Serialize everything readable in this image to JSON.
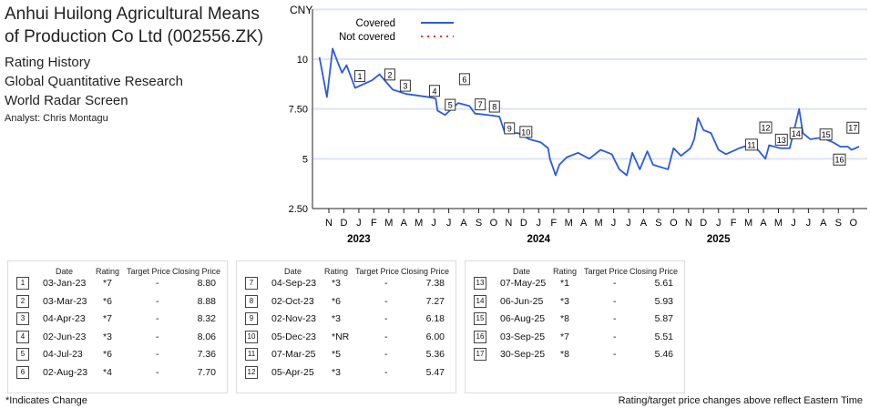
{
  "header": {
    "title": "Anhui Huilong Agricultural Means of Production Co Ltd (002556.ZK)",
    "lines": [
      "Rating History",
      "Global Quantitative Research",
      "World Radar Screen"
    ],
    "analyst": "Analyst: Chris Montagu"
  },
  "colors": {
    "covered": "#2b5be0",
    "not_covered": "#e53935",
    "grid": "#dfe3f5"
  },
  "chart_data": {
    "type": "line",
    "ylabel": "CNY",
    "yticks": [
      "10",
      "7.50",
      "5",
      "2.50"
    ],
    "ytick_values": [
      10,
      7.5,
      5,
      2.5
    ],
    "ylim": [
      2.5,
      12.5
    ],
    "legend": [
      {
        "name": "Covered",
        "style": "solid"
      },
      {
        "name": "Not covered",
        "style": "dotted"
      }
    ],
    "x_months": [
      "N",
      "D",
      "J",
      "F",
      "M",
      "A",
      "M",
      "J",
      "J",
      "A",
      "S",
      "O",
      "N",
      "D",
      "J",
      "F",
      "M",
      "A",
      "M",
      "J",
      "J",
      "A",
      "S",
      "O",
      "N",
      "D",
      "J",
      "F",
      "M",
      "A",
      "M",
      "J",
      "J",
      "A",
      "S",
      "O"
    ],
    "x_years": [
      {
        "label": "2023",
        "month_index": 2
      },
      {
        "label": "2024",
        "month_index": 14
      },
      {
        "label": "2025",
        "month_index": 26
      }
    ],
    "x_unit": "months since Nov 2022",
    "series": [
      {
        "name": "Covered",
        "points": [
          [
            -0.63,
            10.1
          ],
          [
            -0.13,
            8.1
          ],
          [
            0.25,
            10.53
          ],
          [
            0.63,
            9.77
          ],
          [
            0.88,
            9.32
          ],
          [
            1.18,
            9.7
          ],
          [
            1.75,
            8.56
          ],
          [
            2.88,
            8.94
          ],
          [
            3.38,
            9.24
          ],
          [
            4.25,
            8.48
          ],
          [
            5.13,
            8.26
          ],
          [
            6.63,
            8.1
          ],
          [
            7.13,
            8.03
          ],
          [
            7.25,
            7.42
          ],
          [
            7.75,
            7.2
          ],
          [
            8.63,
            7.8
          ],
          [
            9.38,
            7.65
          ],
          [
            9.75,
            7.27
          ],
          [
            10.63,
            7.2
          ],
          [
            11.38,
            7.12
          ],
          [
            11.75,
            6.29
          ],
          [
            12.63,
            6.29
          ],
          [
            13.38,
            5.98
          ],
          [
            14.13,
            5.83
          ],
          [
            14.63,
            5.53
          ],
          [
            14.75,
            5.0
          ],
          [
            15.13,
            4.17
          ],
          [
            15.38,
            4.7
          ],
          [
            15.88,
            5.08
          ],
          [
            16.63,
            5.3
          ],
          [
            17.38,
            5.0
          ],
          [
            18.13,
            5.45
          ],
          [
            18.88,
            5.23
          ],
          [
            19.38,
            4.47
          ],
          [
            19.88,
            4.17
          ],
          [
            20.25,
            5.3
          ],
          [
            20.75,
            4.47
          ],
          [
            21.25,
            5.38
          ],
          [
            21.63,
            4.7
          ],
          [
            22.63,
            4.47
          ],
          [
            23.0,
            5.53
          ],
          [
            23.5,
            5.15
          ],
          [
            24.13,
            5.53
          ],
          [
            24.38,
            5.98
          ],
          [
            24.63,
            7.05
          ],
          [
            25.0,
            6.44
          ],
          [
            25.5,
            6.29
          ],
          [
            26.0,
            5.45
          ],
          [
            26.5,
            5.23
          ],
          [
            27.38,
            5.53
          ],
          [
            28.0,
            5.68
          ],
          [
            28.63,
            5.45
          ],
          [
            29.13,
            5.0
          ],
          [
            29.38,
            5.68
          ],
          [
            30.13,
            5.53
          ],
          [
            30.75,
            5.53
          ],
          [
            31.0,
            6.29
          ],
          [
            31.38,
            7.5
          ],
          [
            31.63,
            6.29
          ],
          [
            32.13,
            5.98
          ],
          [
            32.88,
            6.06
          ],
          [
            33.63,
            5.83
          ],
          [
            34.13,
            5.61
          ],
          [
            34.63,
            5.61
          ],
          [
            34.88,
            5.45
          ],
          [
            35.38,
            5.61
          ]
        ]
      }
    ],
    "markers": [
      {
        "n": "1",
        "date": "03-Jan-23",
        "rating": "*7",
        "target": "-",
        "close": "8.80",
        "m": 2.07
      },
      {
        "n": "2",
        "date": "03-Mar-23",
        "rating": "*6",
        "target": "-",
        "close": "8.88",
        "m": 4.07
      },
      {
        "n": "3",
        "date": "04-Apr-23",
        "rating": "*7",
        "target": "-",
        "close": "8.32",
        "m": 5.1
      },
      {
        "n": "4",
        "date": "02-Jun-23",
        "rating": "*3",
        "target": "-",
        "close": "8.06",
        "m": 7.05
      },
      {
        "n": "5",
        "date": "04-Jul-23",
        "rating": "*6",
        "target": "-",
        "close": "7.36",
        "m": 8.1
      },
      {
        "n": "6",
        "date": "02-Aug-23",
        "rating": "*4",
        "target": "-",
        "close": "7.70",
        "m": 9.05
      },
      {
        "n": "7",
        "date": "04-Sep-23",
        "rating": "*3",
        "target": "-",
        "close": "7.38",
        "m": 10.1
      },
      {
        "n": "8",
        "date": "02-Oct-23",
        "rating": "*6",
        "target": "-",
        "close": "7.27",
        "m": 11.05
      },
      {
        "n": "9",
        "date": "02-Nov-23",
        "rating": "*3",
        "target": "-",
        "close": "6.18",
        "m": 12.05
      },
      {
        "n": "10",
        "date": "05-Dec-23",
        "rating": "*NR",
        "target": "-",
        "close": "6.00",
        "m": 13.15
      },
      {
        "n": "11",
        "date": "07-Mar-25",
        "rating": "*5",
        "target": "-",
        "close": "5.36",
        "m": 28.2
      },
      {
        "n": "12",
        "date": "05-Apr-25",
        "rating": "*3",
        "target": "-",
        "close": "5.47",
        "m": 29.15
      },
      {
        "n": "13",
        "date": "07-May-25",
        "rating": "*1",
        "target": "-",
        "close": "5.61",
        "m": 30.2
      },
      {
        "n": "14",
        "date": "06-Jun-25",
        "rating": "*3",
        "target": "-",
        "close": "5.93",
        "m": 31.17
      },
      {
        "n": "15",
        "date": "06-Aug-25",
        "rating": "*8",
        "target": "-",
        "close": "5.87",
        "m": 33.17
      },
      {
        "n": "16",
        "date": "03-Sep-25",
        "rating": "*7",
        "target": "-",
        "close": "5.51",
        "m": 34.07
      },
      {
        "n": "17",
        "date": "30-Sep-25",
        "rating": "*8",
        "target": "-",
        "close": "5.46",
        "m": 34.97
      }
    ]
  },
  "table": {
    "headers": {
      "date": "Date",
      "rating": "Rating",
      "target": "Target Price",
      "close": "Closing Price"
    }
  },
  "footer": {
    "left": "*Indicates Change",
    "right": "Rating/target price changes above reflect Eastern Time"
  }
}
